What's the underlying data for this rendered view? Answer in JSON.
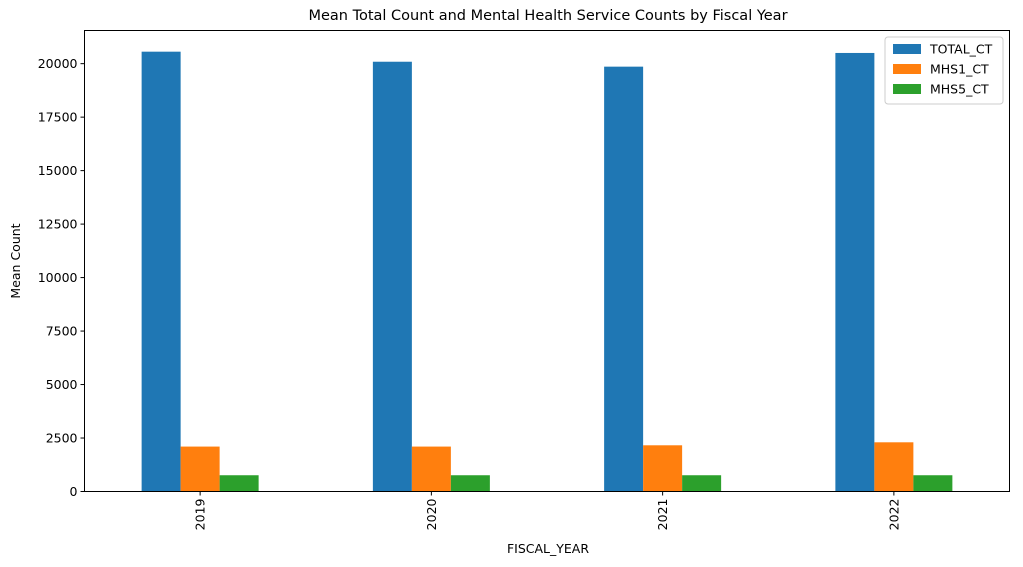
{
  "chart_data": {
    "type": "bar",
    "title": "Mean Total Count and Mental Health Service Counts by Fiscal Year",
    "xlabel": "FISCAL_YEAR",
    "ylabel": "Mean Count",
    "categories": [
      "2019",
      "2020",
      "2021",
      "2022"
    ],
    "series": [
      {
        "name": "TOTAL_CT",
        "color": "#1f77b4",
        "values": [
          20560,
          20090,
          19860,
          20500
        ]
      },
      {
        "name": "MHS1_CT",
        "color": "#ff7f0e",
        "values": [
          2100,
          2100,
          2160,
          2300
        ]
      },
      {
        "name": "MHS5_CT",
        "color": "#2ca02c",
        "values": [
          760,
          760,
          760,
          760
        ]
      }
    ],
    "ylim": [
      0,
      21550
    ],
    "yticks": [
      0,
      2500,
      5000,
      7500,
      10000,
      12500,
      15000,
      17500,
      20000
    ],
    "grid": false,
    "legend_position": "top-right",
    "xtick_rotation": "vertical"
  }
}
